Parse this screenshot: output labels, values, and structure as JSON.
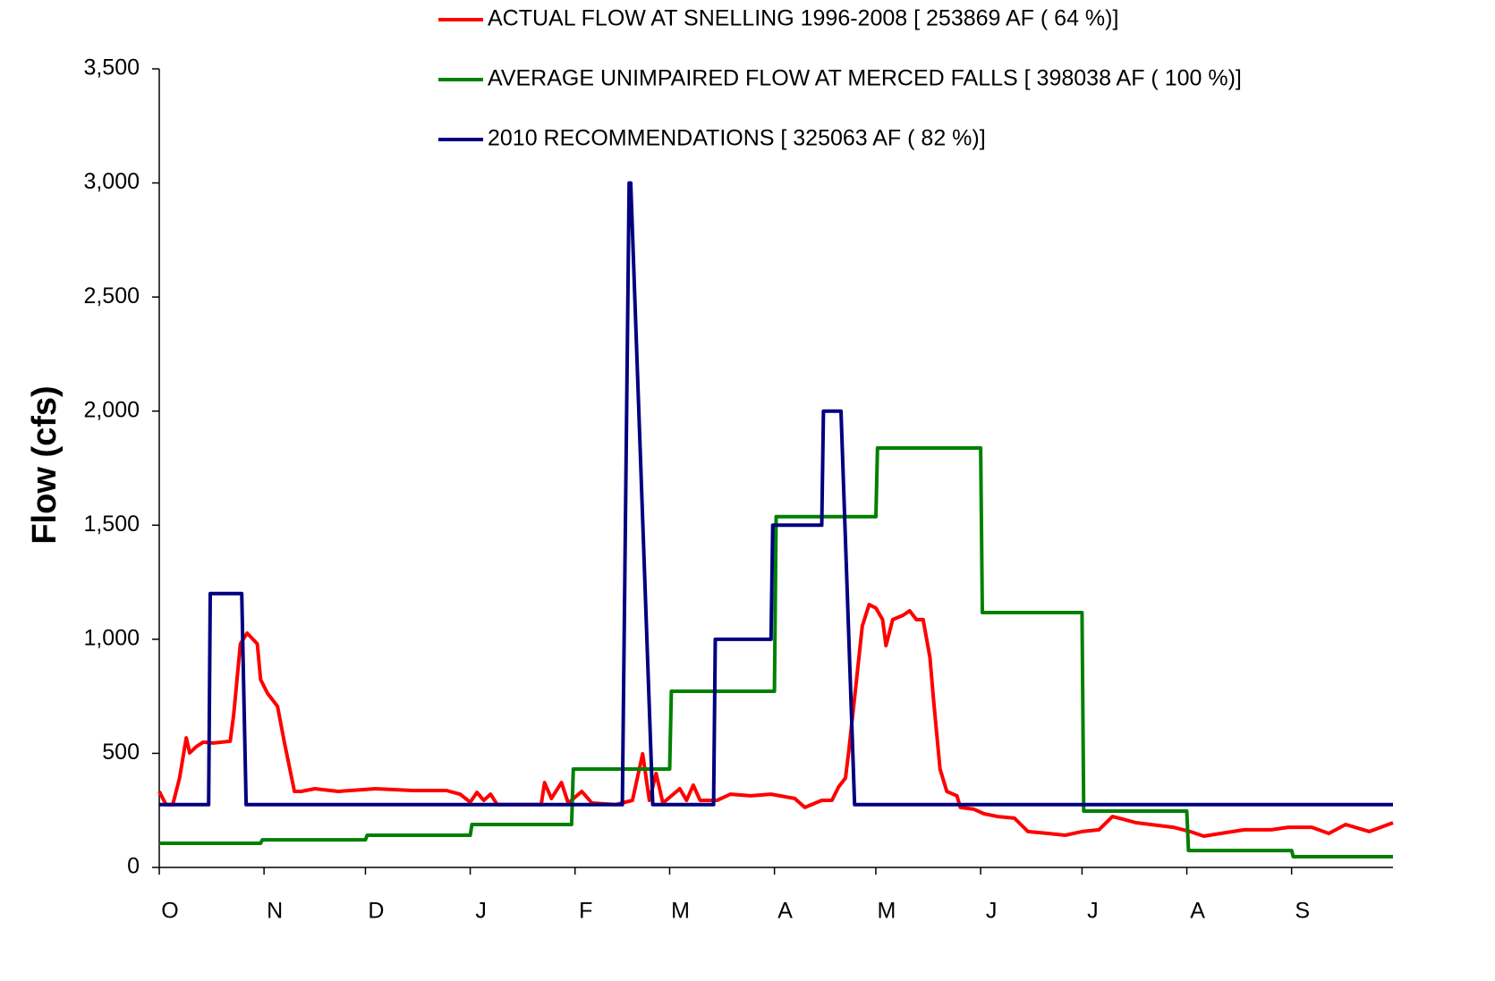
{
  "chart_data": {
    "type": "line",
    "y_label": "Flow (cfs)",
    "xlim": [
      0,
      365
    ],
    "xticks": [
      {
        "value": 0,
        "label": "O"
      },
      {
        "value": 31,
        "label": "N"
      },
      {
        "value": 61,
        "label": "D"
      },
      {
        "value": 92,
        "label": "J"
      },
      {
        "value": 123,
        "label": "F"
      },
      {
        "value": 151,
        "label": "M"
      },
      {
        "value": 182,
        "label": "A"
      },
      {
        "value": 212,
        "label": "M"
      },
      {
        "value": 243,
        "label": "J"
      },
      {
        "value": 273,
        "label": "J"
      },
      {
        "value": 304,
        "label": "A"
      },
      {
        "value": 335,
        "label": "S"
      }
    ],
    "ylim": [
      0,
      3500
    ],
    "yticks": [
      0,
      500,
      {
        "value": 1000,
        "label": "1,000"
      },
      {
        "value": 1500,
        "label": "1,500"
      },
      {
        "value": 2000,
        "label": "2,000"
      },
      {
        "value": 2500,
        "label": "2,500"
      },
      {
        "value": 3000,
        "label": "3,000"
      },
      {
        "value": 3500,
        "label": "3,500"
      }
    ],
    "series": [
      {
        "name": "ACTUAL FLOW AT SNELLING 1996-2008 [ 253869 AF ( 64 %)]",
        "color": "#ff0000",
        "x": [
          0,
          2,
          4,
          6,
          8,
          9,
          11,
          13,
          16,
          21,
          22,
          24,
          26,
          29,
          30,
          32,
          35,
          37,
          40,
          42,
          46,
          53,
          64,
          75,
          85,
          89,
          92,
          94,
          96,
          98,
          100,
          106,
          113,
          114,
          116,
          119,
          121,
          125,
          128,
          135,
          140,
          143,
          145,
          147,
          149,
          154,
          156,
          158,
          160,
          165,
          169,
          175,
          181,
          188,
          191,
          196,
          199,
          201,
          203,
          204,
          206,
          208,
          210,
          212,
          214,
          215,
          217,
          220,
          222,
          224,
          226,
          228,
          229,
          231,
          233,
          236,
          237,
          241,
          244,
          248,
          253,
          257,
          263,
          268,
          273,
          278,
          282,
          285,
          289,
          300,
          305,
          309,
          314,
          321,
          329,
          334,
          341,
          346,
          351,
          358,
          365
        ],
        "values": [
          333,
          275,
          275,
          392,
          568,
          502,
          530,
          549,
          545,
          553,
          666,
          980,
          1027,
          980,
          823,
          764,
          706,
          549,
          333,
          333,
          345,
          333,
          345,
          337,
          337,
          321,
          286,
          329,
          294,
          321,
          275,
          275,
          275,
          372,
          302,
          372,
          282,
          333,
          282,
          275,
          294,
          498,
          294,
          412,
          282,
          345,
          294,
          361,
          294,
          294,
          321,
          314,
          321,
          302,
          263,
          294,
          294,
          353,
          392,
          510,
          784,
          1058,
          1152,
          1137,
          1086,
          972,
          1086,
          1105,
          1125,
          1086,
          1086,
          921,
          745,
          431,
          333,
          314,
          263,
          255,
          235,
          223,
          216,
          157,
          149,
          141,
          157,
          165,
          223,
          212,
          196,
          176,
          157,
          137,
          149,
          165,
          165,
          176,
          176,
          149,
          188,
          157,
          196
        ]
      },
      {
        "name": "AVERAGE UNIMPAIRED FLOW AT MERCED FALLS [ 398038 AF ( 100 %)]",
        "color": "#008000",
        "x": [
          0,
          30,
          30.5,
          61,
          61.5,
          92,
          92.5,
          122,
          122.5,
          151,
          151.5,
          182,
          182.5,
          212,
          212.5,
          243,
          243.5,
          273,
          273.5,
          304,
          304.5,
          335,
          335.5,
          365
        ],
        "values": [
          106,
          106,
          121,
          121,
          141,
          141,
          188,
          188,
          431,
          431,
          772,
          772,
          1537,
          1537,
          1838,
          1838,
          1117,
          1117,
          247,
          247,
          74,
          74,
          47,
          47
        ]
      },
      {
        "name": "2010 RECOMMENDATIONS [ 325063 AF ( 82 %)]",
        "color": "#000080",
        "x": [
          0,
          14.6,
          15.1,
          24.4,
          25.7,
          137,
          139,
          139.5,
          146,
          164,
          164.5,
          181,
          181.5,
          196,
          196.5,
          201.7,
          205.7,
          365
        ],
        "values": [
          275,
          275,
          1200,
          1200,
          275,
          275,
          3000,
          3000,
          275,
          275,
          1000,
          1000,
          1500,
          1500,
          2000,
          2000,
          275,
          275
        ]
      }
    ]
  }
}
